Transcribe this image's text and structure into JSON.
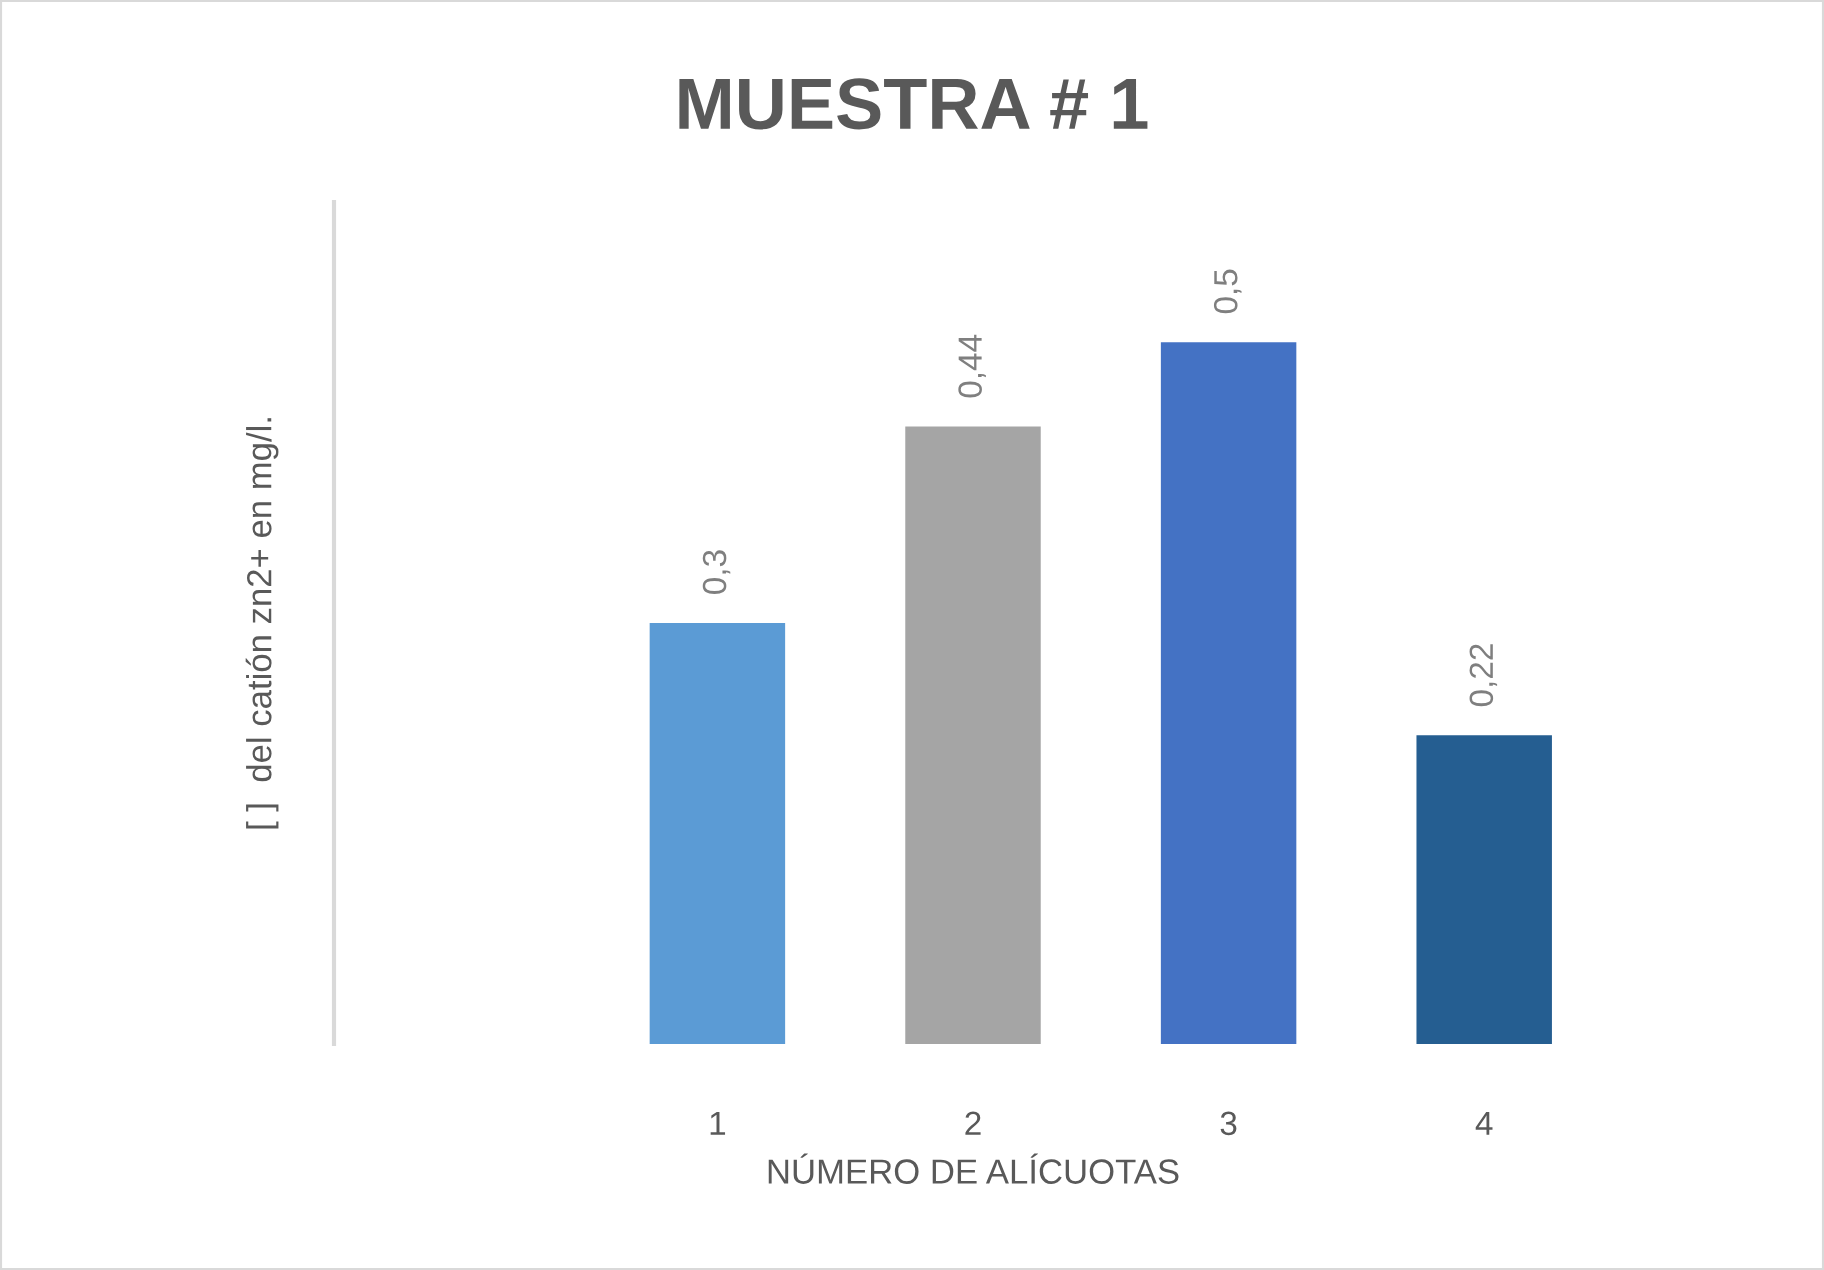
{
  "chart_data": {
    "type": "bar",
    "title": "MUESTRA # 1",
    "xlabel": "NÚMERO DE ALÍCUOTAS",
    "ylabel": "[ ]  del catión zn2+ en mg/l.",
    "categories": [
      null,
      "1",
      "2",
      "3",
      "4"
    ],
    "values": [
      null,
      0.3,
      0.44,
      0.5,
      0.22
    ],
    "colors": [
      null,
      "#5b9bd5",
      "#a5a5a5",
      "#4472c4",
      "#255e91"
    ],
    "value_labels": [
      null,
      "0,3",
      "0,44",
      "0,5",
      "0,22"
    ],
    "ylim": [
      0,
      0.6
    ],
    "tick_labels": "x",
    "grid": false
  }
}
